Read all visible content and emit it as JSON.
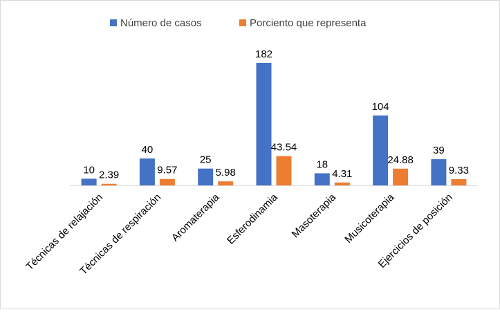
{
  "chart_data": {
    "type": "bar",
    "title": "",
    "xlabel": "",
    "ylabel": "",
    "ylim": [
      0,
      182
    ],
    "grid": false,
    "legend_position": "top",
    "categories": [
      "Técnicas de relajación",
      "Técnicas de respiración",
      "Aromaterapia",
      "Esferodinamia",
      "Masoterapia",
      "Musicoterapia",
      "Ejercicios de posición"
    ],
    "series": [
      {
        "name": "Número de casos",
        "color": "#4472c4",
        "values": [
          10,
          40,
          25,
          182,
          18,
          104,
          39
        ],
        "labels": [
          "10",
          "40",
          "25",
          "182",
          "18",
          "104",
          "39"
        ]
      },
      {
        "name": "Porciento que representa",
        "color": "#ed7d31",
        "values": [
          2.39,
          9.57,
          5.98,
          43.54,
          4.31,
          24.88,
          9.33
        ],
        "labels": [
          "2.39",
          "9.57",
          "5.98",
          "43.54",
          "4.31",
          "24.88",
          "9.33"
        ]
      }
    ]
  }
}
